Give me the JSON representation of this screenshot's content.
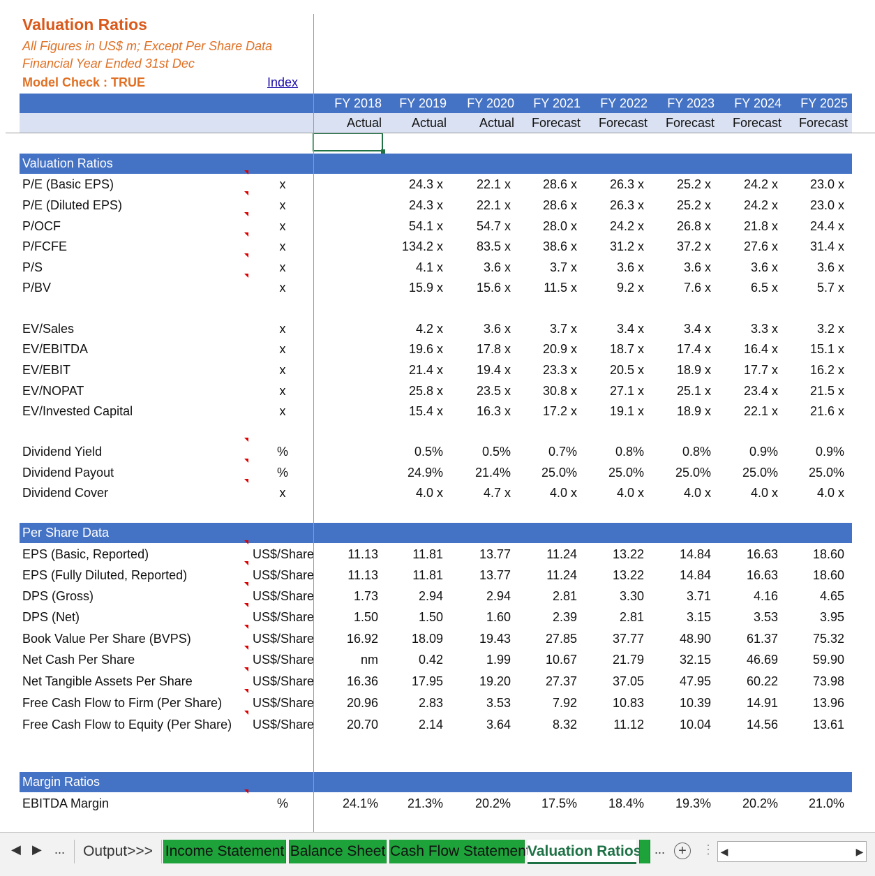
{
  "header": {
    "title": "Valuation Ratios",
    "subtitle_units": "All Figures in US$ m; Except Per Share Data",
    "subtitle_year": "Financial Year Ended 31st Dec",
    "model_check": "Model Check : TRUE",
    "index_link": "Index"
  },
  "years": [
    "FY 2018",
    "FY 2019",
    "FY 2020",
    "FY 2021",
    "FY 2022",
    "FY 2023",
    "FY 2024",
    "FY 2025"
  ],
  "statuses": [
    "Actual",
    "Actual",
    "Actual",
    "Forecast",
    "Forecast",
    "Forecast",
    "Forecast",
    "Forecast"
  ],
  "sections": [
    {
      "title": "Valuation Ratios",
      "groups": [
        [
          {
            "label": "P/E (Basic EPS)",
            "unit": "x",
            "comment": true,
            "values": [
              "",
              "24.3 x",
              "22.1 x",
              "28.6 x",
              "26.3 x",
              "25.2 x",
              "24.2 x",
              "23.0 x"
            ]
          },
          {
            "label": "P/E (Diluted EPS)",
            "unit": "x",
            "comment": true,
            "values": [
              "",
              "24.3 x",
              "22.1 x",
              "28.6 x",
              "26.3 x",
              "25.2 x",
              "24.2 x",
              "23.0 x"
            ]
          },
          {
            "label": "P/OCF",
            "unit": "x",
            "comment": true,
            "values": [
              "",
              "54.1 x",
              "54.7 x",
              "28.0 x",
              "24.2 x",
              "26.8 x",
              "21.8 x",
              "24.4 x"
            ]
          },
          {
            "label": "P/FCFE",
            "unit": "x",
            "comment": true,
            "values": [
              "",
              "134.2 x",
              "83.5 x",
              "38.6 x",
              "31.2 x",
              "37.2 x",
              "27.6 x",
              "31.4 x"
            ]
          },
          {
            "label": "P/S",
            "unit": "x",
            "comment": true,
            "values": [
              "",
              "4.1 x",
              "3.6 x",
              "3.7 x",
              "3.6 x",
              "3.6 x",
              "3.6 x",
              "3.6 x"
            ]
          },
          {
            "label": "P/BV",
            "unit": "x",
            "comment": true,
            "values": [
              "",
              "15.9 x",
              "15.6 x",
              "11.5 x",
              "9.2 x",
              "7.6 x",
              "6.5 x",
              "5.7 x"
            ]
          }
        ],
        [
          {
            "label": "EV/Sales",
            "unit": "x",
            "comment": false,
            "values": [
              "",
              "4.2 x",
              "3.6 x",
              "3.7 x",
              "3.4 x",
              "3.4 x",
              "3.3 x",
              "3.2 x"
            ]
          },
          {
            "label": "EV/EBITDA",
            "unit": "x",
            "comment": false,
            "values": [
              "",
              "19.6 x",
              "17.8 x",
              "20.9 x",
              "18.7 x",
              "17.4 x",
              "16.4 x",
              "15.1 x"
            ]
          },
          {
            "label": "EV/EBIT",
            "unit": "x",
            "comment": false,
            "values": [
              "",
              "21.4 x",
              "19.4 x",
              "23.3 x",
              "20.5 x",
              "18.9 x",
              "17.7 x",
              "16.2 x"
            ]
          },
          {
            "label": "EV/NOPAT",
            "unit": "x",
            "comment": false,
            "values": [
              "",
              "25.8 x",
              "23.5 x",
              "30.8 x",
              "27.1 x",
              "25.1 x",
              "23.4 x",
              "21.5 x"
            ]
          },
          {
            "label": "EV/Invested Capital",
            "unit": "x",
            "comment": false,
            "values": [
              "",
              "15.4 x",
              "16.3 x",
              "17.2 x",
              "19.1 x",
              "18.9 x",
              "22.1 x",
              "21.6 x"
            ]
          }
        ],
        [
          {
            "label": "Dividend Yield",
            "unit": "%",
            "comment": true,
            "values": [
              "",
              "0.5%",
              "0.5%",
              "0.7%",
              "0.8%",
              "0.8%",
              "0.9%",
              "0.9%"
            ]
          },
          {
            "label": "Dividend Payout",
            "unit": "%",
            "comment": true,
            "values": [
              "",
              "24.9%",
              "21.4%",
              "25.0%",
              "25.0%",
              "25.0%",
              "25.0%",
              "25.0%"
            ]
          },
          {
            "label": "Dividend Cover",
            "unit": "x",
            "comment": true,
            "values": [
              "",
              "4.0 x",
              "4.7 x",
              "4.0 x",
              "4.0 x",
              "4.0 x",
              "4.0 x",
              "4.0 x"
            ]
          }
        ]
      ]
    },
    {
      "title": "Per Share Data",
      "groups": [
        [
          {
            "label": "EPS (Basic, Reported)",
            "unit": "US$/Share",
            "comment": true,
            "values": [
              "11.13",
              "11.81",
              "13.77",
              "11.24",
              "13.22",
              "14.84",
              "16.63",
              "18.60"
            ]
          },
          {
            "label": "EPS (Fully Diluted, Reported)",
            "unit": "US$/Share",
            "comment": true,
            "values": [
              "11.13",
              "11.81",
              "13.77",
              "11.24",
              "13.22",
              "14.84",
              "16.63",
              "18.60"
            ]
          },
          {
            "label": "DPS (Gross)",
            "unit": "US$/Share",
            "comment": true,
            "values": [
              "1.73",
              "2.94",
              "2.94",
              "2.81",
              "3.30",
              "3.71",
              "4.16",
              "4.65"
            ]
          },
          {
            "label": "DPS (Net)",
            "unit": "US$/Share",
            "comment": true,
            "values": [
              "1.50",
              "1.50",
              "1.60",
              "2.39",
              "2.81",
              "3.15",
              "3.53",
              "3.95"
            ]
          },
          {
            "label": "Book Value Per Share (BVPS)",
            "unit": "US$/Share",
            "comment": true,
            "values": [
              "16.92",
              "18.09",
              "19.43",
              "27.85",
              "37.77",
              "48.90",
              "61.37",
              "75.32"
            ]
          },
          {
            "label": "Net Cash Per Share",
            "unit": "US$/Share",
            "comment": true,
            "values": [
              "nm",
              "0.42",
              "1.99",
              "10.67",
              "21.79",
              "32.15",
              "46.69",
              "59.90"
            ]
          },
          {
            "label": "Net Tangible Assets Per Share",
            "unit": "US$/Share",
            "comment": true,
            "values": [
              "16.36",
              "17.95",
              "19.20",
              "27.37",
              "37.05",
              "47.95",
              "60.22",
              "73.98"
            ]
          },
          {
            "label": "Free Cash Flow to Firm (Per Share)",
            "unit": "US$/Share",
            "comment": true,
            "values": [
              "20.96",
              "2.83",
              "3.53",
              "7.92",
              "10.83",
              "10.39",
              "14.91",
              "13.96"
            ]
          },
          {
            "label": "Free Cash Flow to Equity (Per Share)",
            "unit": "US$/Share",
            "comment": true,
            "values": [
              "20.70",
              "2.14",
              "3.64",
              "8.32",
              "11.12",
              "10.04",
              "14.56",
              "13.61"
            ]
          }
        ]
      ]
    },
    {
      "title": "Margin Ratios",
      "groups": [
        [
          {
            "label": "EBITDA Margin",
            "unit": "%",
            "comment": true,
            "values": [
              "24.1%",
              "21.3%",
              "20.2%",
              "17.5%",
              "18.4%",
              "19.3%",
              "20.2%",
              "21.0%"
            ]
          }
        ]
      ]
    }
  ],
  "tabs": {
    "nav_prev": "◀",
    "nav_next": "▶",
    "nav_more": "...",
    "items": [
      {
        "label": "Output>>>",
        "style": "plain"
      },
      {
        "label": "Income Statement",
        "style": "green"
      },
      {
        "label": "Balance Sheet",
        "style": "green"
      },
      {
        "label": "Cash Flow Statement",
        "style": "green"
      },
      {
        "label": "Valuation Ratios",
        "style": "active"
      }
    ],
    "more_right": "...",
    "add_sheet": "+"
  },
  "colors": {
    "section_band": "#4472c4",
    "status_band": "#d9e1f2",
    "title": "#d9591b",
    "green_tab": "#1ea23a",
    "active_tab_text": "#1e7145"
  }
}
